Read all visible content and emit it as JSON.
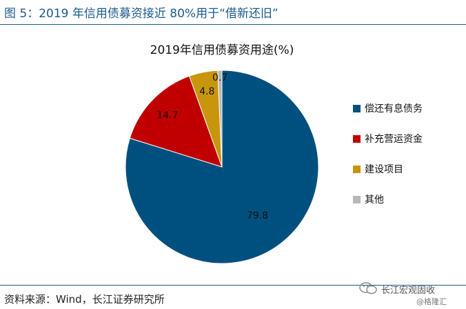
{
  "figure": {
    "title": "图 5：2019 年信用债募资接近 80%用于“借新还旧”",
    "source": "资料来源：Wind，长江证券研究所",
    "watermark_main": "长江宏观固收",
    "watermark_sub": "@格隆汇"
  },
  "chart_data": {
    "type": "pie",
    "title": "2019年信用债募资用途(%)",
    "categories": [
      "偿还有息债务",
      "补充营运资金",
      "建设项目",
      "其他"
    ],
    "values": [
      79.8,
      14.7,
      4.8,
      0.7
    ],
    "data_labels": [
      "79.8",
      "14.7",
      "4.8",
      "0.7"
    ],
    "colors": [
      "#00507f",
      "#c00000",
      "#c8960c",
      "#b8b8b8"
    ],
    "legend": "right",
    "start_angle": "12 o'clock",
    "direction": "clockwise"
  }
}
